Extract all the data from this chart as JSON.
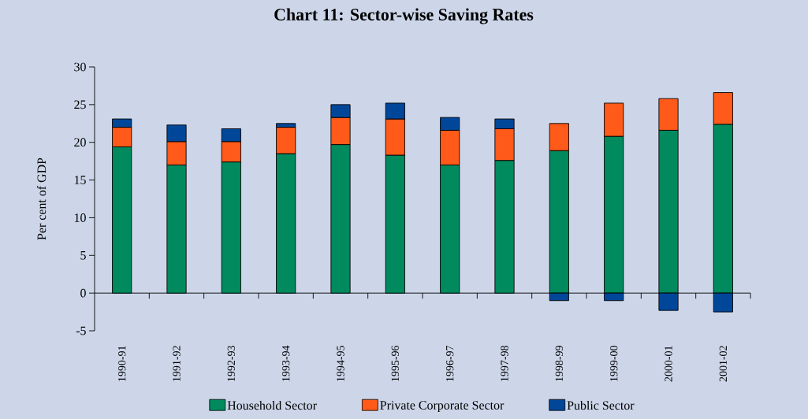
{
  "chart_data": {
    "type": "bar",
    "title": "Chart 11: Sector-wise Saving Rates",
    "ylabel": "Per cent of GDP",
    "categories": [
      "1990-91",
      "1991-92",
      "1992-93",
      "1993-94",
      "1994-95",
      "1995-96",
      "1996-97",
      "1997-98",
      "1998-99",
      "1999-00",
      "2000-01",
      "2001-02"
    ],
    "series": [
      {
        "name": "Household Sector",
        "color": "#008a5e",
        "values": [
          19.4,
          17.0,
          17.4,
          18.5,
          19.7,
          18.3,
          17.0,
          17.6,
          18.9,
          20.8,
          21.6,
          22.4
        ]
      },
      {
        "name": "Private Corporate Sector",
        "color": "#ff5a19",
        "values": [
          2.6,
          3.1,
          2.7,
          3.5,
          3.6,
          4.8,
          4.6,
          4.2,
          3.6,
          4.4,
          4.2,
          4.2
        ]
      },
      {
        "name": "Public Sector",
        "color": "#00479a",
        "values": [
          1.1,
          2.2,
          1.7,
          0.5,
          1.7,
          2.1,
          1.7,
          1.3,
          -1.0,
          -1.0,
          -2.3,
          -2.5
        ]
      }
    ],
    "stacked": true,
    "ylim": [
      -5,
      30
    ],
    "yticks": [
      -5,
      0,
      5,
      10,
      15,
      20,
      25,
      30
    ],
    "legend": "bottom"
  }
}
